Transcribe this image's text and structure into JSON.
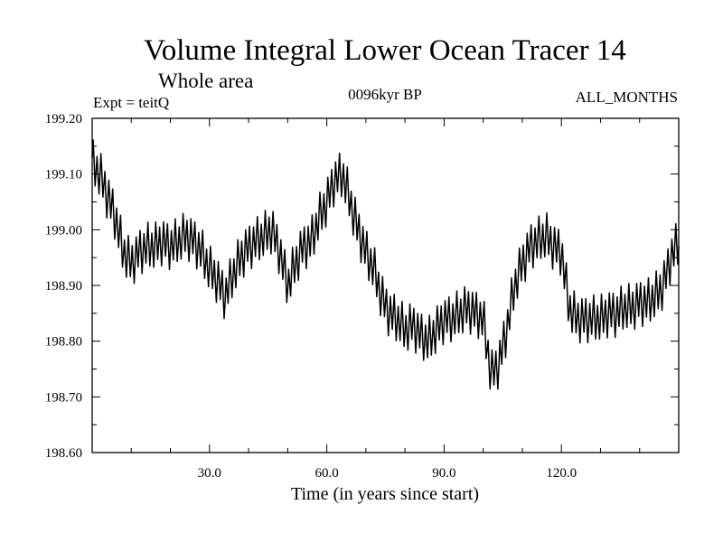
{
  "chart_data": {
    "type": "line",
    "title": "Volume Integral Lower Ocean Tracer 14",
    "subtitle": "Whole area",
    "experiment_label": "Expt = teitQ",
    "period_label": "0096kyr BP",
    "months_label": "ALL_MONTHS",
    "xlabel": "Time (in years since start)",
    "ylabel": "",
    "xlim": [
      0,
      150
    ],
    "ylim": [
      198.6,
      199.2
    ],
    "grid": false,
    "x_tick_labels": [
      "30.0",
      "60.0",
      "90.0",
      "120.0"
    ],
    "y_tick_labels": [
      "198.60",
      "198.70",
      "198.80",
      "198.90",
      "199.00",
      "199.10",
      "199.20"
    ],
    "series": [
      {
        "name": "Volume Integral Lower Ocean Tracer 14",
        "color": "#000000",
        "x": [
          0,
          2,
          4,
          6,
          8,
          10,
          12,
          14,
          16,
          18,
          20,
          22,
          24,
          26,
          28,
          30,
          32,
          34,
          36,
          38,
          40,
          42,
          44,
          46,
          48,
          50,
          52,
          54,
          56,
          58,
          60,
          62,
          64,
          66,
          68,
          70,
          72,
          74,
          76,
          78,
          80,
          82,
          84,
          86,
          88,
          90,
          92,
          94,
          96,
          98,
          100,
          102,
          104,
          106,
          108,
          110,
          112,
          114,
          116,
          118,
          120,
          122,
          124,
          126,
          128,
          130,
          132,
          134,
          136,
          138,
          140,
          142,
          144,
          146,
          148,
          150
        ],
        "values": [
          199.12,
          199.1,
          199.06,
          199.02,
          198.96,
          198.94,
          198.96,
          198.97,
          198.97,
          198.98,
          198.97,
          198.98,
          198.99,
          198.98,
          198.96,
          198.93,
          198.91,
          198.88,
          198.92,
          198.95,
          198.97,
          198.98,
          198.99,
          199.0,
          198.96,
          198.9,
          198.94,
          198.97,
          198.98,
          199.02,
          199.05,
          199.09,
          199.1,
          199.05,
          199.0,
          198.96,
          198.93,
          198.88,
          198.85,
          198.84,
          198.82,
          198.83,
          198.81,
          198.8,
          198.82,
          198.84,
          198.84,
          198.85,
          198.86,
          198.85,
          198.84,
          198.74,
          198.76,
          198.82,
          198.9,
          198.94,
          198.97,
          198.98,
          198.99,
          198.97,
          198.96,
          198.86,
          198.84,
          198.84,
          198.84,
          198.84,
          198.85,
          198.85,
          198.86,
          198.86,
          198.87,
          198.87,
          198.88,
          198.9,
          198.95,
          198.98
        ]
      }
    ]
  }
}
